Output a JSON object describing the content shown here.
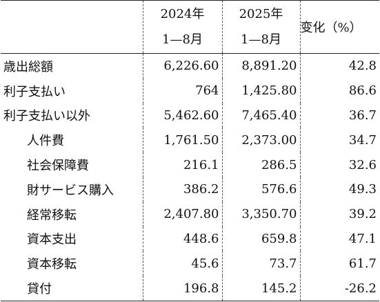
{
  "header": {
    "col1_line1": "2024年",
    "col1_line2": "1—8月",
    "col2_line1": "2025年",
    "col2_line2": "1—8月",
    "col3": "变化（%）"
  },
  "rows": [
    {
      "label": "歳出総額",
      "v2024": "6,226.60",
      "v2025": "8,891.20",
      "change": "42.8",
      "indent": false
    },
    {
      "label": "利子支払い",
      "v2024": "764",
      "v2025": "1,425.80",
      "change": "86.6",
      "indent": false
    },
    {
      "label": "利子支払い以外",
      "v2024": "5,462.60",
      "v2025": "7,465.40",
      "change": "36.7",
      "indent": false
    },
    {
      "label": "人件費",
      "v2024": "1,761.50",
      "v2025": "2,373.00",
      "change": "34.7",
      "indent": true
    },
    {
      "label": "社会保障費",
      "v2024": "216.1",
      "v2025": "286.5",
      "change": "32.6",
      "indent": true
    },
    {
      "label": "財サービス購入",
      "v2024": "386.2",
      "v2025": "576.6",
      "change": "49.3",
      "indent": true
    },
    {
      "label": "経常移転",
      "v2024": "2,407.80",
      "v2025": "3,350.70",
      "change": "39.2",
      "indent": true
    },
    {
      "label": "資本支出",
      "v2024": "448.6",
      "v2025": "659.8",
      "change": "47.1",
      "indent": true
    },
    {
      "label": "資本移転",
      "v2024": "45.6",
      "v2025": "73.7",
      "change": "61.7",
      "indent": true
    },
    {
      "label": "貸付",
      "v2024": "196.8",
      "v2025": "145.2",
      "change": "-26.2",
      "indent": true
    }
  ]
}
